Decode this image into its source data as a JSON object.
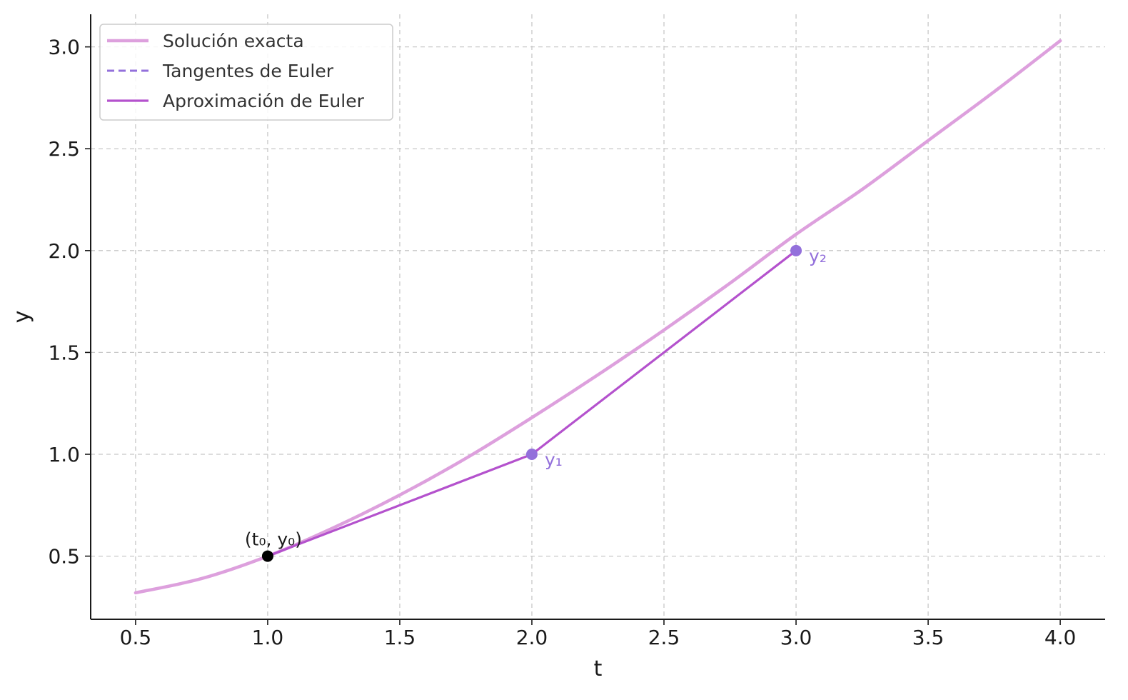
{
  "chart_data": {
    "type": "line",
    "title": "",
    "xlabel": "t",
    "ylabel": "y",
    "xlim": [
      0.33,
      4.17
    ],
    "ylim": [
      0.19,
      3.16
    ],
    "xticks": [
      0.5,
      1.0,
      1.5,
      2.0,
      2.5,
      3.0,
      3.5,
      4.0
    ],
    "yticks": [
      0.5,
      1.0,
      1.5,
      2.0,
      2.5,
      3.0
    ],
    "xtick_labels": [
      "0.5",
      "1.0",
      "1.5",
      "2.0",
      "2.5",
      "3.0",
      "3.5",
      "4.0"
    ],
    "ytick_labels": [
      "0.5",
      "1.0",
      "1.5",
      "2.0",
      "2.5",
      "3.0"
    ],
    "grid": true,
    "legend_position": "top-left",
    "series": [
      {
        "name": "Solución exacta",
        "color": "#dda0dd",
        "style": "solid",
        "x": [
          0.5,
          0.75,
          1.0,
          1.25,
          1.5,
          1.75,
          2.0,
          2.25,
          2.5,
          2.75,
          3.0,
          3.25,
          3.5,
          3.75,
          4.0
        ],
        "y": [
          0.32,
          0.39,
          0.5,
          0.64,
          0.8,
          0.98,
          1.18,
          1.39,
          1.61,
          1.84,
          2.08,
          2.3,
          2.54,
          2.78,
          3.03
        ]
      },
      {
        "name": "Tangentes de Euler",
        "color": "#9370db",
        "style": "dashed",
        "x": [],
        "y": []
      },
      {
        "name": "Aproximación de Euler",
        "color": "#b452cd",
        "style": "solid",
        "x": [
          1.0,
          2.0,
          3.0
        ],
        "y": [
          0.5,
          1.0,
          2.0
        ]
      }
    ],
    "points": [
      {
        "x": 1.0,
        "y": 0.5,
        "label": "(t₀, y₀)",
        "color": "#000000"
      },
      {
        "x": 2.0,
        "y": 1.0,
        "label": "y₁",
        "color": "#9370db"
      },
      {
        "x": 3.0,
        "y": 2.0,
        "label": "y₂",
        "color": "#9370db"
      }
    ]
  }
}
